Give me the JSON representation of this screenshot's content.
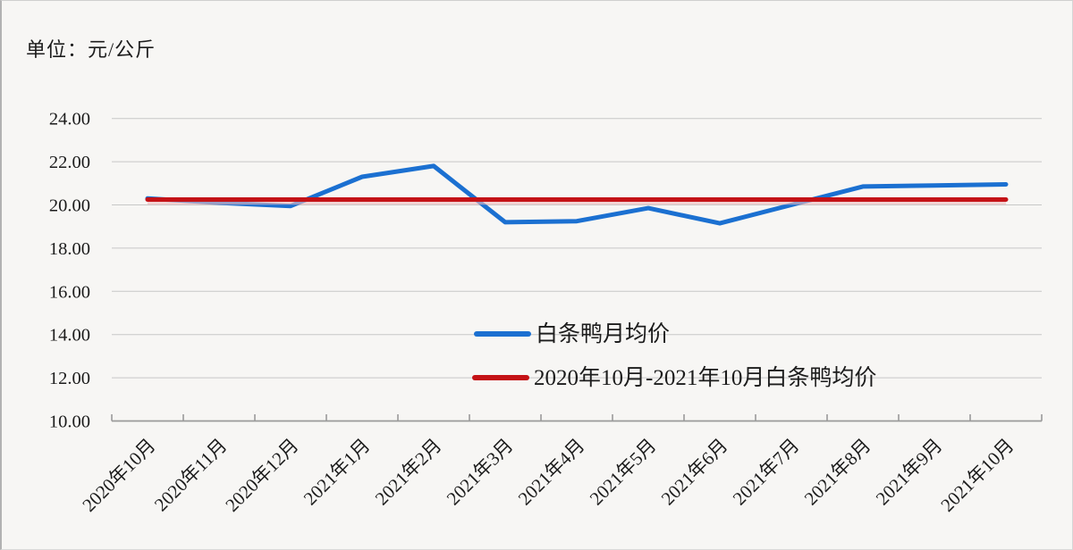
{
  "chart_data": {
    "type": "line",
    "unit_label": "单位：元/公斤",
    "title": "",
    "xlabel": "",
    "ylabel": "",
    "categories": [
      "2020年10月",
      "2020年11月",
      "2020年12月",
      "2021年1月",
      "2021年2月",
      "2021年3月",
      "2021年4月",
      "2021年5月",
      "2021年6月",
      "2021年7月",
      "2021年8月",
      "2021年9月",
      "2021年10月"
    ],
    "series": [
      {
        "name": "白条鸭月均价",
        "color": "#1b70d1",
        "values": [
          20.3,
          20.1,
          19.95,
          21.3,
          21.8,
          19.2,
          19.25,
          19.85,
          19.15,
          20.0,
          20.85,
          20.9,
          20.95
        ]
      },
      {
        "name": "2020年10月-2021年10月白条鸭均价",
        "color": "#c41216",
        "constant_value": 20.25
      }
    ],
    "ylim": [
      10,
      24
    ],
    "ytick_step": 2,
    "ytick_labels": [
      "24.00",
      "22.00",
      "20.00",
      "18.00",
      "16.00",
      "14.00",
      "12.00",
      "10.00"
    ],
    "grid": "horizontal",
    "legend_position": "overlay-center-right",
    "colors": {
      "grid_line": "#c7c7c7",
      "axis_line": "#9a9a9a",
      "average_line_halo": "#eebaba",
      "text": "#1c1c1c"
    }
  }
}
